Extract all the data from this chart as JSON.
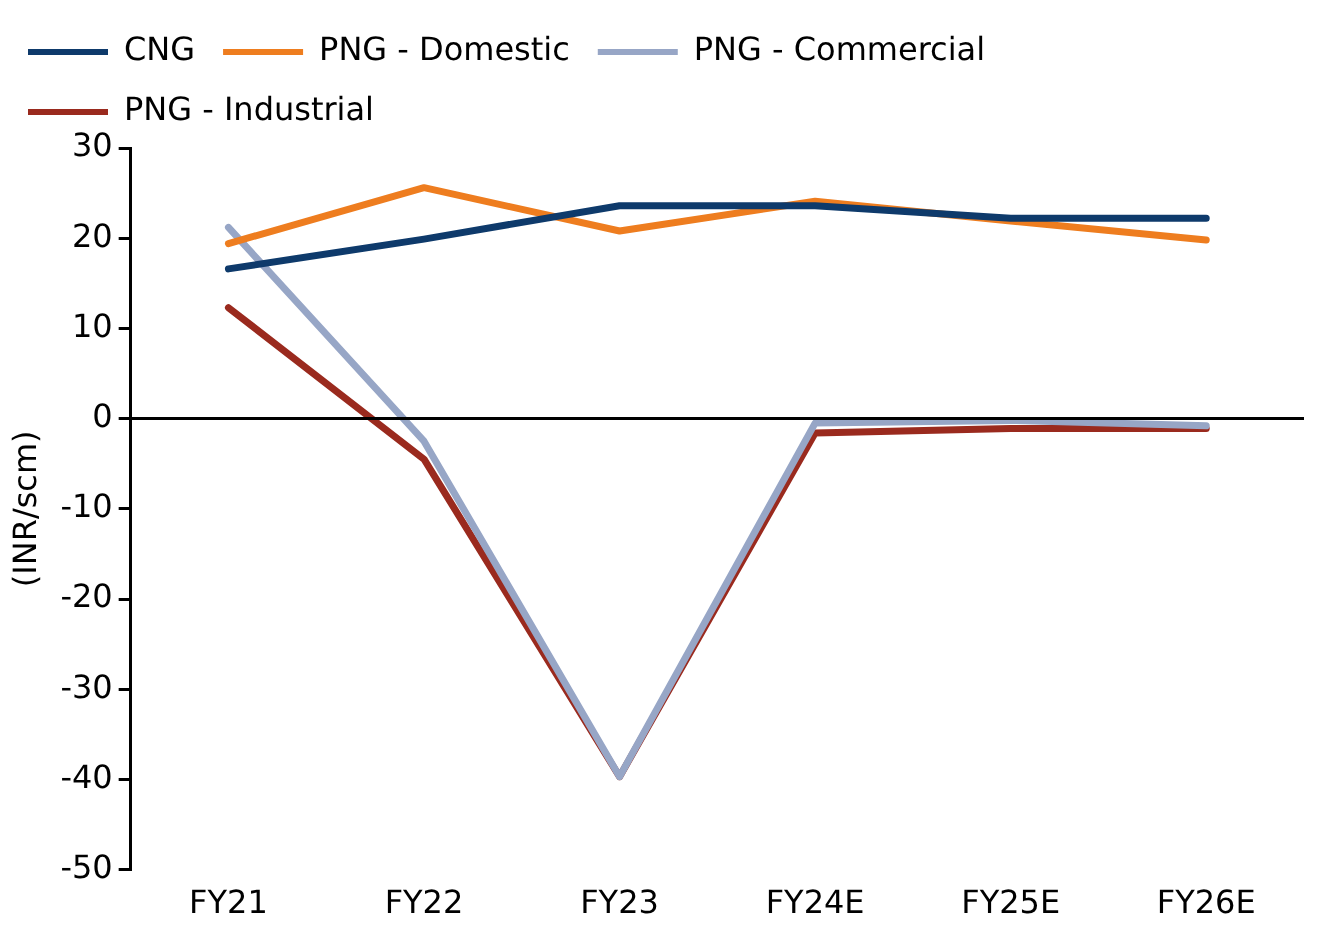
{
  "chart_data": {
    "type": "line",
    "ylabel": "(INR/scm)",
    "categories": [
      "FY21",
      "FY22",
      "FY23",
      "FY24E",
      "FY25E",
      "FY26E"
    ],
    "series": [
      {
        "name": "CNG",
        "color": "#0e3a6b",
        "values": [
          16.6,
          19.9,
          23.6,
          23.6,
          22.2,
          22.2
        ]
      },
      {
        "name": "PNG - Domestic",
        "color": "#ee7d1f",
        "values": [
          19.4,
          25.6,
          20.8,
          24.1,
          21.9,
          19.8
        ]
      },
      {
        "name": "PNG - Commercial",
        "color": "#97a6c6",
        "values": [
          21.2,
          -2.5,
          -39.7,
          -0.5,
          -0.2,
          -0.8
        ]
      },
      {
        "name": "PNG - Industrial",
        "color": "#9a2a1e",
        "values": [
          12.3,
          -4.5,
          -39.7,
          -1.6,
          -1.1,
          -1.1
        ]
      }
    ],
    "ylim": [
      -50,
      30
    ],
    "yticks": [
      -50,
      -40,
      -30,
      -20,
      -10,
      0,
      10,
      20,
      30
    ],
    "ref_lines": [
      {
        "axis": "y",
        "value": 0,
        "color": "#000000"
      }
    ],
    "grid": false,
    "legend": "top",
    "marker": "none",
    "line_style": "solid"
  }
}
